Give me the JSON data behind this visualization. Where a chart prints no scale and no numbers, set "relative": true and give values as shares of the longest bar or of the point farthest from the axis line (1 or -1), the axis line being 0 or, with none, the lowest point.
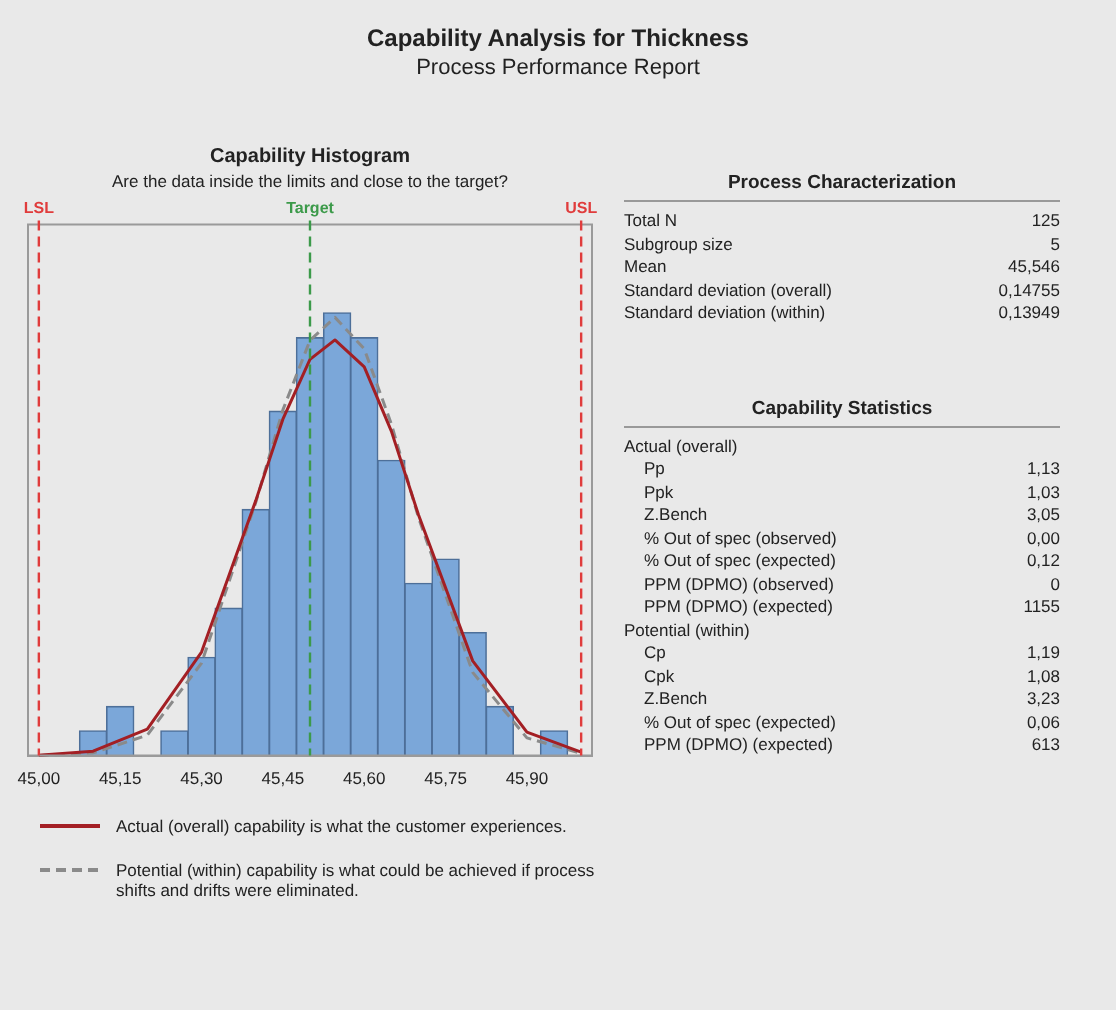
{
  "chart_data": [
    {
      "type": "other",
      "title": "Capability Analysis for Thickness",
      "subtitle": "Process Performance Report"
    },
    {
      "type": "histogram",
      "title": "Capability Histogram",
      "subtitle": "Are the data inside the limits and close to the target?",
      "relative": true,
      "bins": [
        45.075,
        45.125,
        45.175,
        45.225,
        45.275,
        45.325,
        45.375,
        45.425,
        45.475,
        45.525,
        45.575,
        45.625,
        45.675,
        45.725,
        45.775,
        45.825,
        45.875,
        45.925,
        45.975
      ],
      "xlim": [
        44.98,
        46.02
      ],
      "xticks": [
        {
          "value": 45.0,
          "label": "45,00"
        },
        {
          "value": 45.15,
          "label": "45,15"
        },
        {
          "value": 45.3,
          "label": "45,30"
        },
        {
          "value": 45.45,
          "label": "45,45"
        },
        {
          "value": 45.6,
          "label": "45,60"
        },
        {
          "value": 45.75,
          "label": "45,75"
        },
        {
          "value": 45.9,
          "label": "45,90"
        }
      ],
      "series": [
        {
          "type": "histogram",
          "color": "#7ba7d9",
          "values": [
            0.056,
            0.111,
            0,
            0.056,
            0.222,
            0.333,
            0.556,
            0.778,
            0.944,
            1,
            0.944,
            0.667,
            0.389,
            0.444,
            0.278,
            0.111,
            0,
            0.056
          ]
        },
        {
          "type": "line",
          "name": "Actual (overall) capability is what the customer experiences.",
          "color": "#a31f24",
          "line_style": "solid",
          "x": [
            45.0,
            45.1,
            45.2,
            45.3,
            45.4,
            45.45,
            45.5,
            45.546,
            45.6,
            45.65,
            45.7,
            45.8,
            45.9,
            46.0
          ],
          "values": [
            0.001,
            0.01,
            0.06,
            0.234,
            0.576,
            0.76,
            0.895,
            0.939,
            0.878,
            0.733,
            0.544,
            0.214,
            0.053,
            0.008
          ]
        },
        {
          "type": "line",
          "name": "Potential (within) capability is what could be achieved if process shifts and drifts were eliminated.",
          "color": "#8a8a8a",
          "line_style": "dashed",
          "x": [
            45.0,
            45.1,
            45.2,
            45.3,
            45.4,
            45.45,
            45.5,
            45.546,
            45.6,
            45.65,
            45.7,
            45.8,
            45.9,
            46.0
          ],
          "values": [
            0.0,
            0.006,
            0.046,
            0.209,
            0.572,
            0.781,
            0.938,
            0.99,
            0.919,
            0.749,
            0.538,
            0.188,
            0.04,
            0.005
          ]
        }
      ],
      "ref_lines": [
        {
          "axis": "x",
          "value": 45.0,
          "label": "LSL",
          "color": "#e03c3c",
          "line_style": "dashed"
        },
        {
          "axis": "x",
          "value": 45.5,
          "label": "Target",
          "color": "#3c9a4a",
          "line_style": "dashed"
        },
        {
          "axis": "x",
          "value": 46.0,
          "label": "USL",
          "color": "#e03c3c",
          "line_style": "dashed"
        }
      ],
      "grid": false,
      "legend": "bottom"
    },
    {
      "type": "other",
      "title": "Process Characterization",
      "annotations": [
        "Total N",
        "125",
        "Subgroup size",
        "5",
        "Mean",
        "45,546",
        "Standard deviation (overall)",
        "0,14755",
        "Standard deviation (within)",
        "0,13949"
      ]
    },
    {
      "type": "other",
      "title": "Capability Statistics",
      "subtitle": "Actual (overall)",
      "annotations": [
        "Pp",
        "1,13",
        "Ppk",
        "1,03",
        "Z.Bench",
        "3,05",
        "% Out of spec (observed)",
        "0,00",
        "% Out of spec (expected)",
        "0,12",
        "PPM (DPMO) (observed)",
        "0",
        "PPM (DPMO) (expected)",
        "1155"
      ]
    },
    {
      "type": "other",
      "subtitle": "Potential (within)",
      "annotations": [
        "Cp",
        "1,19",
        "Cpk",
        "1,08",
        "Z.Bench",
        "3,23",
        "% Out of spec (expected)",
        "0,06",
        "PPM (DPMO) (expected)",
        "613"
      ]
    }
  ]
}
